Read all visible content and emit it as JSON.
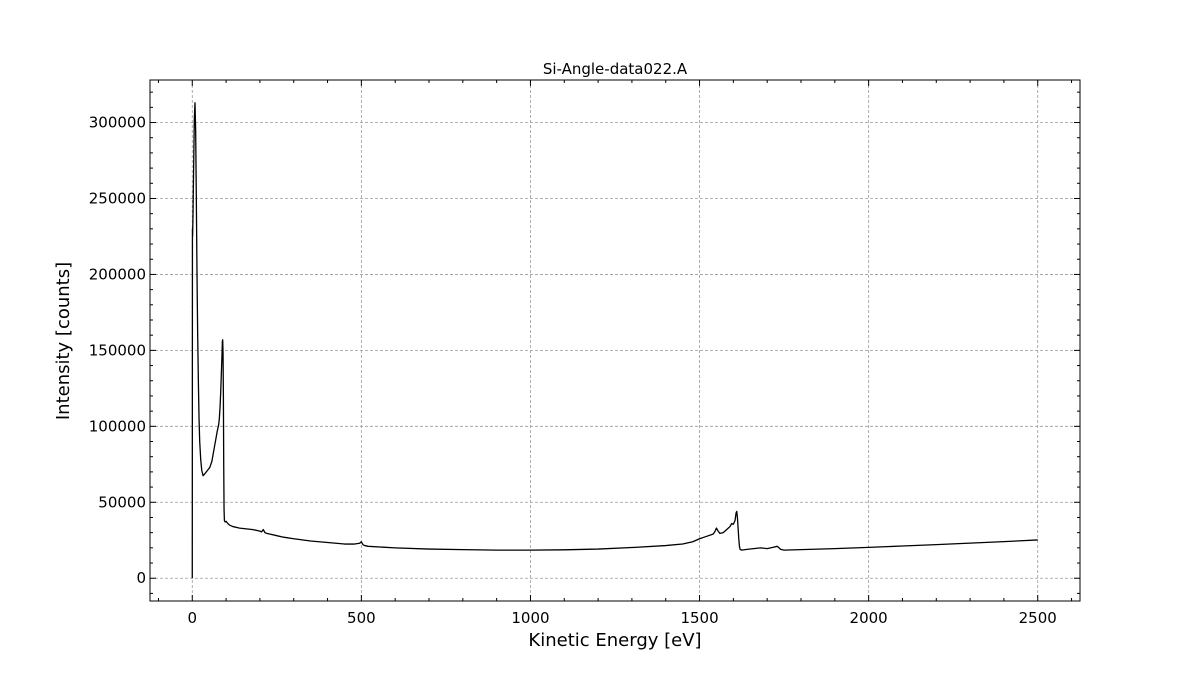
{
  "chart_data": {
    "type": "line",
    "title": "Si-Angle-data022.A",
    "xlabel": "Kinetic Energy [eV]",
    "ylabel": "Intensity [counts]",
    "xlim": [
      -125,
      2625
    ],
    "ylim": [
      -15000,
      328000
    ],
    "xticks": [
      0,
      500,
      1000,
      1500,
      2000,
      2500
    ],
    "yticks": [
      0,
      50000,
      100000,
      150000,
      200000,
      250000,
      300000
    ],
    "xtick_labels": [
      "0",
      "500",
      "1000",
      "1500",
      "2000",
      "2500"
    ],
    "ytick_labels": [
      "0",
      "50000",
      "100000",
      "150000",
      "200000",
      "250000",
      "300000"
    ],
    "grid": true,
    "series": [
      {
        "values_x": [
          0,
          0.5,
          1,
          2,
          4,
          6,
          8,
          10,
          12,
          14,
          16,
          18,
          20,
          22,
          25,
          28,
          32,
          38,
          45,
          52,
          58,
          62,
          66,
          70,
          74,
          78,
          80,
          82,
          84,
          86,
          88,
          89,
          90,
          91,
          92,
          93,
          94,
          95,
          97,
          100,
          105,
          110,
          120,
          140,
          160,
          180,
          200,
          205,
          210,
          215,
          220,
          230,
          250,
          270,
          300,
          350,
          400,
          450,
          480,
          495,
          500,
          505,
          510,
          520,
          600,
          700,
          800,
          900,
          1000,
          1100,
          1200,
          1300,
          1400,
          1450,
          1480,
          1500,
          1520,
          1540,
          1545,
          1550,
          1555,
          1560,
          1570,
          1580,
          1590,
          1595,
          1600,
          1605,
          1608,
          1610,
          1612,
          1614,
          1616,
          1618,
          1620,
          1625,
          1640,
          1660,
          1680,
          1700,
          1720,
          1730,
          1735,
          1740,
          1750,
          1800,
          1900,
          2000,
          2100,
          2200,
          2300,
          2400,
          2500
        ],
        "values_y": [
          0,
          230000,
          225000,
          237000,
          270000,
          302000,
          313000,
          295000,
          250000,
          200000,
          160000,
          130000,
          105000,
          90000,
          78000,
          71000,
          67500,
          69000,
          71000,
          73000,
          77000,
          82000,
          87000,
          92000,
          97000,
          101000,
          105000,
          112000,
          122000,
          135000,
          148000,
          156000,
          157000,
          148000,
          120000,
          75000,
          45000,
          38000,
          37000,
          37500,
          36000,
          35000,
          34000,
          33000,
          32500,
          32000,
          31000,
          30500,
          32000,
          30000,
          29500,
          29000,
          28000,
          27000,
          26000,
          24500,
          23500,
          22500,
          22500,
          23000,
          24000,
          22000,
          21500,
          21000,
          20000,
          19200,
          18800,
          18500,
          18500,
          18700,
          19200,
          20200,
          21500,
          22500,
          24000,
          26000,
          27500,
          29000,
          30500,
          33000,
          31000,
          29500,
          30000,
          32000,
          34000,
          36000,
          35500,
          38000,
          43000,
          44000,
          40000,
          33000,
          26000,
          21000,
          19000,
          18500,
          19000,
          19500,
          20000,
          19500,
          20500,
          21000,
          20000,
          19000,
          18500,
          18800,
          19500,
          20300,
          21200,
          22100,
          23100,
          24100,
          25200
        ]
      }
    ]
  }
}
